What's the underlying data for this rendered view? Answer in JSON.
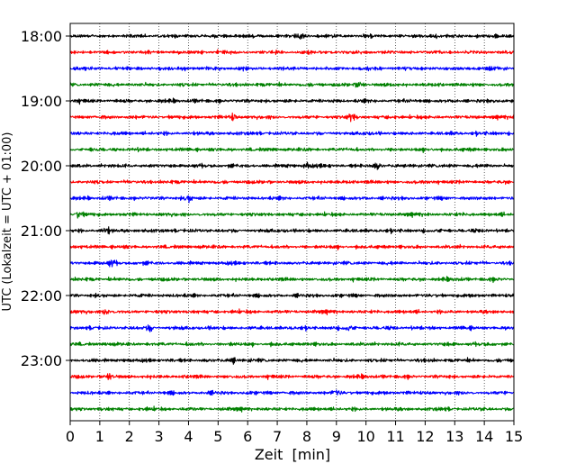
{
  "chart_data": {
    "type": "line",
    "chart_kind": "helicorder (stacked seismogram traces)",
    "xlabel": "Zeit  [min]",
    "ylabel": "UTC (Lokalzeit = UTC + 01:00)",
    "xlim": [
      0,
      15
    ],
    "x_ticks": [
      "0",
      "1",
      "2",
      "3",
      "4",
      "5",
      "6",
      "7",
      "8",
      "9",
      "10",
      "11",
      "12",
      "13",
      "14",
      "15"
    ],
    "y_tick_labels": [
      "18:00",
      "19:00",
      "20:00",
      "21:00",
      "22:00",
      "23:00"
    ],
    "trace_interval_minutes": 15,
    "trace_count": 24,
    "first_trace_start": "18:00",
    "trace_colors": [
      "#000000",
      "#ff0000",
      "#0000ff",
      "#008000"
    ],
    "vertical_grid": "dotted, every 1 min",
    "notable_events": [
      {
        "trace": "18:00",
        "minute": 7.8
      },
      {
        "trace": "18:00",
        "minute": 12.3
      },
      {
        "trace": "18:45",
        "minute": 9.8
      },
      {
        "trace": "19:15",
        "minute": 9.5
      },
      {
        "trace": "19:15",
        "minute": 5.5
      },
      {
        "trace": "20:00",
        "minute": 10.4
      },
      {
        "trace": "20:00",
        "minute": 8.0
      },
      {
        "trace": "20:30",
        "minute": 4.0
      },
      {
        "trace": "20:45",
        "minute": 0.3
      },
      {
        "trace": "21:00",
        "minute": 1.2
      },
      {
        "trace": "21:30",
        "minute": 1.4
      },
      {
        "trace": "22:15",
        "minute": 1.2
      },
      {
        "trace": "22:30",
        "minute": 2.7
      },
      {
        "trace": "22:30",
        "minute": 9.4
      },
      {
        "trace": "23:00",
        "minute": 5.5
      },
      {
        "trace": "23:15",
        "minute": 1.3
      },
      {
        "trace": "23:30",
        "minute": 9.0
      }
    ]
  }
}
